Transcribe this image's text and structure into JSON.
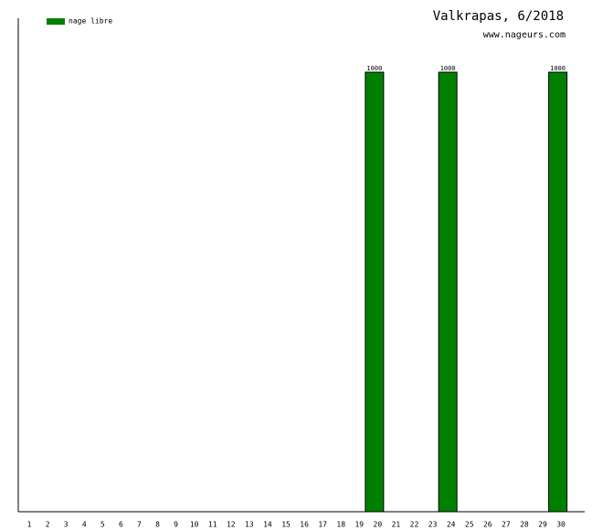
{
  "chart_data": {
    "type": "bar",
    "title": "Valkrapas, 6/2018",
    "subtitle": "www.nageurs.com",
    "categories": [
      "1",
      "2",
      "3",
      "4",
      "5",
      "6",
      "7",
      "8",
      "9",
      "10",
      "11",
      "12",
      "13",
      "14",
      "15",
      "16",
      "17",
      "18",
      "19",
      "20",
      "21",
      "22",
      "23",
      "24",
      "25",
      "26",
      "27",
      "28",
      "29",
      "30"
    ],
    "series": [
      {
        "name": "nage libre",
        "color": "#008000",
        "values": [
          0,
          0,
          0,
          0,
          0,
          0,
          0,
          0,
          0,
          0,
          0,
          0,
          0,
          0,
          0,
          0,
          0,
          0,
          0,
          1000,
          0,
          0,
          0,
          1000,
          0,
          0,
          0,
          0,
          0,
          1000
        ]
      }
    ],
    "ylim": [
      0,
      1000
    ]
  }
}
